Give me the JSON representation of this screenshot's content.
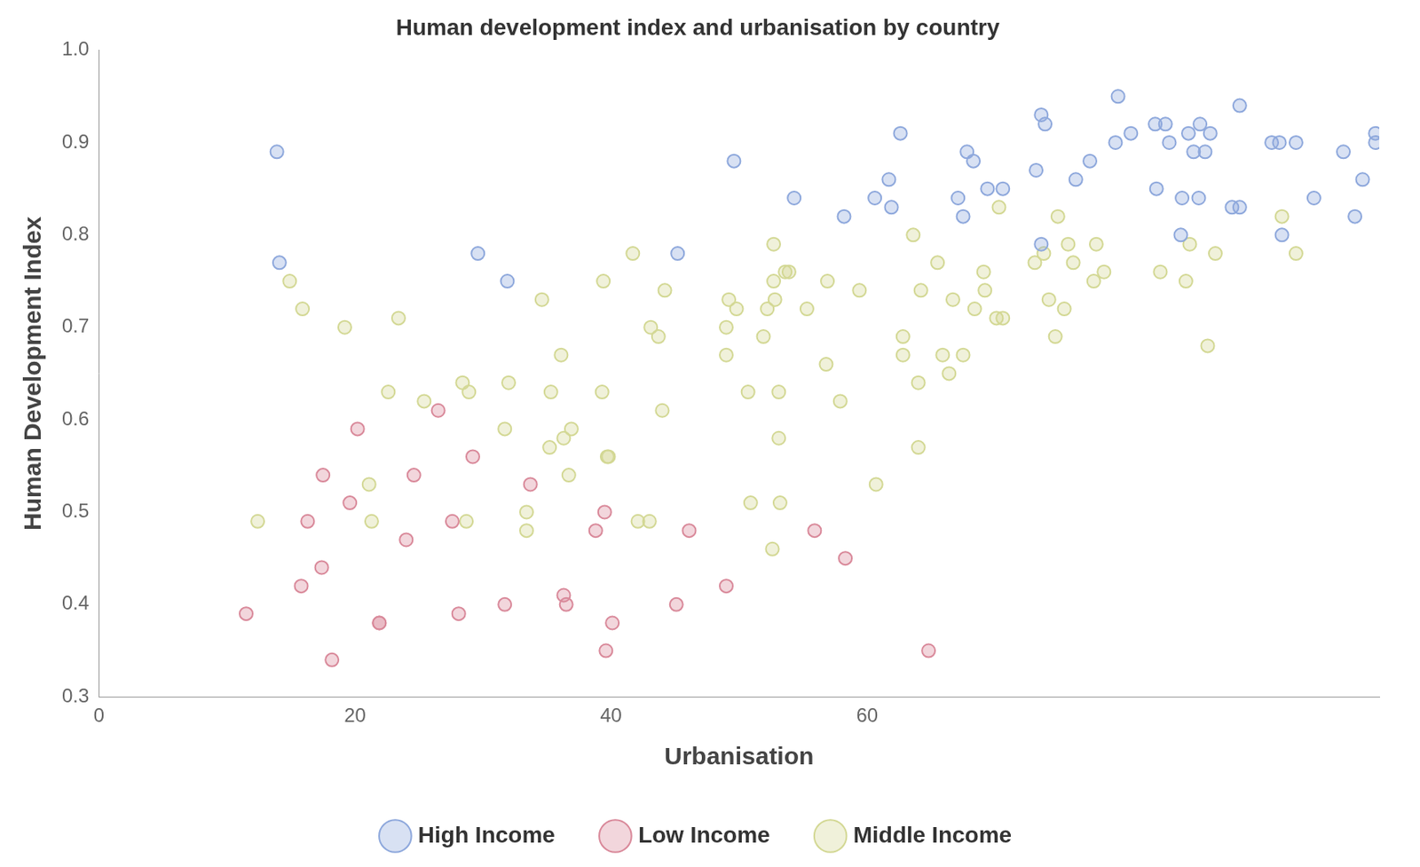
{
  "chart_data": {
    "type": "scatter",
    "title": "Human development index and urbanisation by country",
    "x_label": "Urbanisation",
    "y_label": "Human Development Index",
    "xlim": [
      0,
      100
    ],
    "xticks": [
      0,
      20,
      40,
      60
    ],
    "ylim": [
      0.3,
      1.0
    ],
    "yticks": [
      0.3,
      0.4,
      0.5,
      0.6,
      0.7,
      0.8,
      0.9,
      {
        "value": 1.0,
        "label": "1.0"
      }
    ],
    "grid": false,
    "legend": "bottom",
    "marker": "circle",
    "series": [
      {
        "name": "High Income",
        "color": "#8ea8dc",
        "x": [
          13.9,
          14.1,
          29.6,
          31.9,
          45.2,
          49.6,
          54.3,
          58.2,
          60.6,
          61.7,
          61.9,
          62.6,
          67.1,
          67.5,
          67.8,
          68.3,
          69.4,
          70.6,
          73.2,
          73.6,
          73.9,
          73.6,
          76.3,
          77.4,
          79.4,
          79.6,
          80.6,
          82.5,
          83.3,
          83.6,
          82.6,
          84.6,
          85.9,
          84.5,
          85.1,
          86.0,
          86.4,
          86.8,
          85.5,
          89.1,
          88.5,
          89.1,
          91.6,
          92.2,
          93.5,
          92.4,
          94.9,
          97.2,
          98.7,
          98.1,
          99.7,
          99.7
        ],
        "values": [
          0.89,
          0.77,
          0.78,
          0.75,
          0.78,
          0.88,
          0.84,
          0.82,
          0.84,
          0.86,
          0.83,
          0.91,
          0.84,
          0.82,
          0.89,
          0.88,
          0.85,
          0.85,
          0.87,
          0.93,
          0.92,
          0.79,
          0.86,
          0.88,
          0.9,
          0.95,
          0.91,
          0.92,
          0.92,
          0.9,
          0.85,
          0.84,
          0.84,
          0.8,
          0.91,
          0.92,
          0.89,
          0.91,
          0.89,
          0.94,
          0.83,
          0.83,
          0.9,
          0.9,
          0.9,
          0.8,
          0.84,
          0.89,
          0.86,
          0.82,
          0.91,
          0.9
        ]
      },
      {
        "name": "Low Income",
        "color": "#d9899a",
        "x": [
          11.5,
          18.2,
          15.8,
          16.3,
          17.4,
          17.5,
          19.6,
          20.2,
          21.9,
          21.9,
          24.0,
          24.6,
          26.5,
          27.6,
          28.1,
          29.2,
          31.7,
          33.7,
          36.3,
          36.5,
          38.8,
          39.5,
          39.6,
          40.1,
          45.1,
          46.1,
          49.0,
          55.9,
          58.3,
          64.8
        ],
        "values": [
          0.39,
          0.34,
          0.42,
          0.49,
          0.44,
          0.54,
          0.51,
          0.59,
          0.38,
          0.38,
          0.47,
          0.54,
          0.61,
          0.49,
          0.39,
          0.56,
          0.4,
          0.53,
          0.41,
          0.4,
          0.48,
          0.5,
          0.35,
          0.38,
          0.4,
          0.48,
          0.42,
          0.48,
          0.45,
          0.35
        ]
      },
      {
        "name": "Middle Income",
        "color": "#d3d894",
        "x": [
          12.4,
          14.9,
          15.9,
          19.2,
          21.1,
          21.3,
          22.6,
          23.4,
          25.4,
          28.4,
          28.9,
          28.7,
          31.7,
          32.0,
          33.4,
          33.4,
          34.6,
          35.3,
          36.1,
          35.2,
          36.3,
          36.9,
          36.7,
          39.4,
          39.3,
          39.7,
          39.8,
          41.7,
          42.1,
          43.0,
          43.1,
          43.7,
          44.0,
          44.2,
          49.0,
          49.0,
          49.2,
          49.8,
          50.7,
          50.9,
          51.9,
          52.2,
          52.7,
          52.8,
          52.7,
          53.1,
          53.1,
          53.2,
          52.6,
          53.6,
          53.9,
          55.3,
          56.8,
          56.9,
          57.9,
          59.4,
          60.7,
          62.8,
          62.8,
          63.6,
          64.0,
          64.0,
          64.2,
          65.5,
          65.9,
          66.4,
          66.7,
          67.5,
          68.4,
          69.1,
          69.2,
          70.1,
          70.3,
          70.6,
          73.1,
          73.8,
          74.2,
          74.7,
          74.9,
          75.4,
          75.7,
          76.1,
          77.7,
          77.9,
          78.5,
          82.9,
          84.9,
          85.2,
          86.6,
          87.2,
          92.4,
          93.5
        ],
        "values": [
          0.49,
          0.75,
          0.72,
          0.7,
          0.53,
          0.49,
          0.63,
          0.71,
          0.62,
          0.64,
          0.63,
          0.49,
          0.59,
          0.64,
          0.5,
          0.48,
          0.73,
          0.63,
          0.67,
          0.57,
          0.58,
          0.59,
          0.54,
          0.75,
          0.63,
          0.56,
          0.56,
          0.78,
          0.49,
          0.49,
          0.7,
          0.69,
          0.61,
          0.74,
          0.67,
          0.7,
          0.73,
          0.72,
          0.63,
          0.51,
          0.69,
          0.72,
          0.79,
          0.73,
          0.75,
          0.58,
          0.63,
          0.51,
          0.46,
          0.76,
          0.76,
          0.72,
          0.66,
          0.75,
          0.62,
          0.74,
          0.53,
          0.69,
          0.67,
          0.8,
          0.64,
          0.57,
          0.74,
          0.77,
          0.67,
          0.65,
          0.73,
          0.67,
          0.72,
          0.76,
          0.74,
          0.71,
          0.83,
          0.71,
          0.77,
          0.78,
          0.73,
          0.69,
          0.82,
          0.72,
          0.79,
          0.77,
          0.75,
          0.79,
          0.76,
          0.76,
          0.75,
          0.79,
          0.68,
          0.78,
          0.82,
          0.78
        ]
      }
    ]
  }
}
